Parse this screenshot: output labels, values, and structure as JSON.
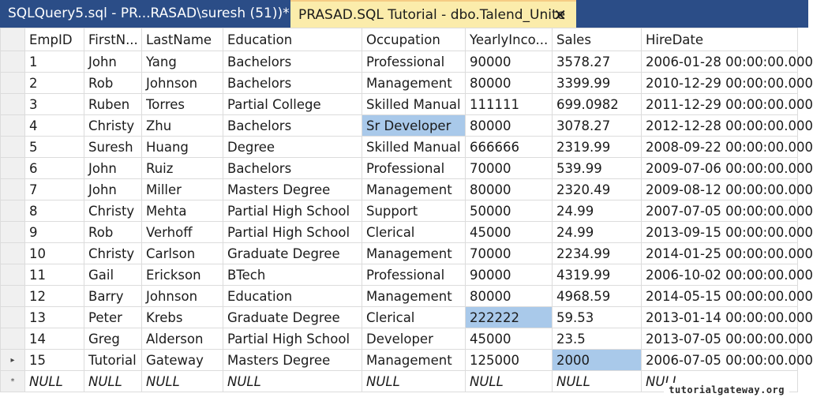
{
  "tabs": [
    {
      "label": "SQLQuery5.sql - PR...RASAD\\suresh (51))*"
    },
    {
      "label": "PRASAD.SQL Tutorial - dbo.Talend_Unite",
      "close": "✕"
    }
  ],
  "grid": {
    "columns": [
      "EmpID",
      "FirstN...",
      "LastName",
      "Education",
      "Occupation",
      "YearlyInco...",
      "Sales",
      "HireDate"
    ],
    "row_markers": {
      "current": "▸",
      "new": "*"
    },
    "rows": [
      [
        "1",
        "John",
        "Yang",
        "Bachelors",
        "Professional",
        "90000",
        "3578.27",
        "2006-01-28 00:00:00.000"
      ],
      [
        "2",
        "Rob",
        "Johnson",
        "Bachelors",
        "Management",
        "80000",
        "3399.99",
        "2010-12-29 00:00:00.000"
      ],
      [
        "3",
        "Ruben",
        "Torres",
        "Partial College",
        "Skilled Manual",
        "111111",
        "699.0982",
        "2011-12-29 00:00:00.000"
      ],
      [
        "4",
        "Christy",
        "Zhu",
        "Bachelors",
        "Sr Developer",
        "80000",
        "3078.27",
        "2012-12-28 00:00:00.000"
      ],
      [
        "5",
        "Suresh",
        "Huang",
        "Degree",
        "Skilled Manual",
        "666666",
        "2319.99",
        "2008-09-22 00:00:00.000"
      ],
      [
        "6",
        "John",
        "Ruiz",
        "Bachelors",
        "Professional",
        "70000",
        "539.99",
        "2009-07-06 00:00:00.000"
      ],
      [
        "7",
        "John",
        "Miller",
        "Masters Degree",
        "Management",
        "80000",
        "2320.49",
        "2009-08-12 00:00:00.000"
      ],
      [
        "8",
        "Christy",
        "Mehta",
        "Partial High School",
        "Support",
        "50000",
        "24.99",
        "2007-07-05 00:00:00.000"
      ],
      [
        "9",
        "Rob",
        "Verhoff",
        "Partial High School",
        "Clerical",
        "45000",
        "24.99",
        "2013-09-15 00:00:00.000"
      ],
      [
        "10",
        "Christy",
        "Carlson",
        "Graduate Degree",
        "Management",
        "70000",
        "2234.99",
        "2014-01-25 00:00:00.000"
      ],
      [
        "11",
        "Gail",
        "Erickson",
        "BTech",
        "Professional",
        "90000",
        "4319.99",
        "2006-10-02 00:00:00.000"
      ],
      [
        "12",
        "Barry",
        "Johnson",
        "Education",
        "Management",
        "80000",
        "4968.59",
        "2014-05-15 00:00:00.000"
      ],
      [
        "13",
        "Peter",
        "Krebs",
        "Graduate Degree",
        "Clerical",
        "222222",
        "59.53",
        "2013-01-14 00:00:00.000"
      ],
      [
        "14",
        "Greg",
        "Alderson",
        "Partial High School",
        "Developer",
        "45000",
        "23.5",
        "2013-07-05 00:00:00.000"
      ],
      [
        "15",
        "Tutorial",
        "Gateway",
        "Masters Degree",
        "Management",
        "125000",
        "2000",
        "2006-07-05 00:00:00.000"
      ]
    ],
    "new_row": [
      "NULL",
      "NULL",
      "NULL",
      "NULL",
      "NULL",
      "NULL",
      "NULL",
      "NULL"
    ],
    "highlighted_cells": [
      {
        "row": 3,
        "col": 4
      },
      {
        "row": 12,
        "col": 5
      },
      {
        "row": 14,
        "col": 6
      }
    ]
  },
  "watermark": "tutorialgateway.org",
  "colors": {
    "tab_bar": "#2b4d87",
    "active_tab": "#fbecab",
    "selection": "#a9c9ea"
  }
}
